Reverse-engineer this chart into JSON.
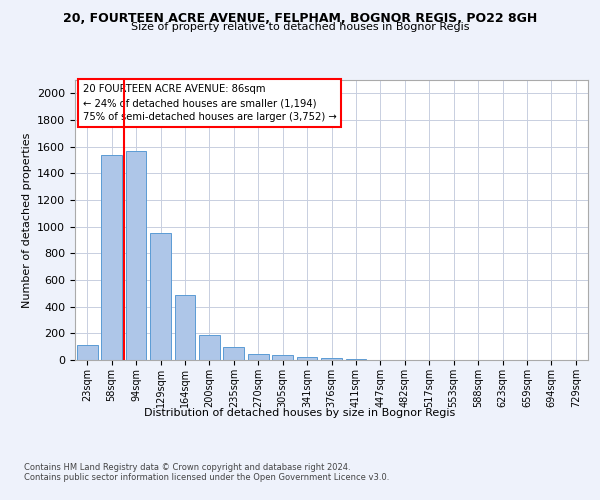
{
  "title_line1": "20, FOURTEEN ACRE AVENUE, FELPHAM, BOGNOR REGIS, PO22 8GH",
  "title_line2": "Size of property relative to detached houses in Bognor Regis",
  "xlabel": "Distribution of detached houses by size in Bognor Regis",
  "ylabel": "Number of detached properties",
  "categories": [
    "23sqm",
    "58sqm",
    "94sqm",
    "129sqm",
    "164sqm",
    "200sqm",
    "235sqm",
    "270sqm",
    "305sqm",
    "341sqm",
    "376sqm",
    "411sqm",
    "447sqm",
    "482sqm",
    "517sqm",
    "553sqm",
    "588sqm",
    "623sqm",
    "659sqm",
    "694sqm",
    "729sqm"
  ],
  "values": [
    110,
    1540,
    1570,
    950,
    490,
    190,
    95,
    45,
    35,
    25,
    15,
    5,
    0,
    0,
    0,
    0,
    0,
    0,
    0,
    0,
    0
  ],
  "bar_color": "#aec6e8",
  "bar_edge_color": "#5b9bd5",
  "ylim": [
    0,
    2100
  ],
  "yticks": [
    0,
    200,
    400,
    600,
    800,
    1000,
    1200,
    1400,
    1600,
    1800,
    2000
  ],
  "annotation_text_line1": "20 FOURTEEN ACRE AVENUE: 86sqm",
  "annotation_text_line2": "← 24% of detached houses are smaller (1,194)",
  "annotation_text_line3": "75% of semi-detached houses are larger (3,752) →",
  "footer_line1": "Contains HM Land Registry data © Crown copyright and database right 2024.",
  "footer_line2": "Contains public sector information licensed under the Open Government Licence v3.0.",
  "background_color": "#eef2fb",
  "plot_bg_color": "#ffffff",
  "grid_color": "#c8cfe0"
}
